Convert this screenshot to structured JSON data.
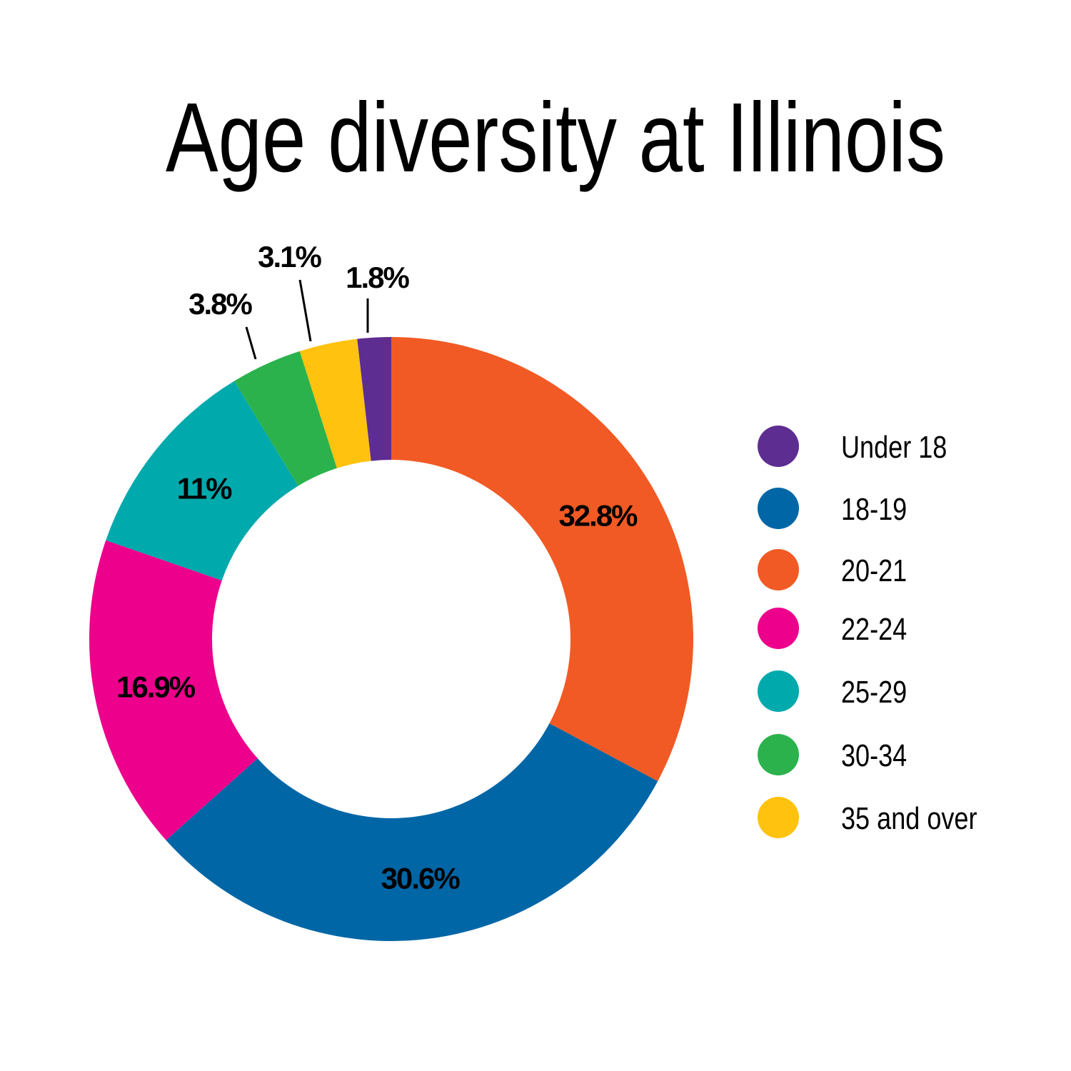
{
  "chart_data": {
    "type": "pie",
    "variant": "donut",
    "title": "Age diversity at Illinois",
    "categories": [
      "Under 18",
      "18-19",
      "20-21",
      "22-24",
      "25-29",
      "30-34",
      "35 and over"
    ],
    "values": [
      1.8,
      30.6,
      32.8,
      16.9,
      11,
      3.8,
      3.1
    ],
    "value_labels": [
      "1.8%",
      "30.6%",
      "32.8%",
      "16.9%",
      "11%",
      "3.8%",
      "3.1%"
    ],
    "colors": [
      "#5e2d91",
      "#0066a6",
      "#f15a24",
      "#ec008c",
      "#00a9ac",
      "#2bb24c",
      "#ffc20e"
    ],
    "legend": {
      "placement": "right",
      "entries": [
        "Under 18",
        "18-19",
        "20-21",
        "22-24",
        "25-29",
        "30-34",
        "35 and over"
      ]
    },
    "slice_order_clockwise_from_top": [
      "20-21",
      "18-19",
      "22-24",
      "25-29",
      "30-34",
      "35 and over",
      "Under 18"
    ]
  }
}
